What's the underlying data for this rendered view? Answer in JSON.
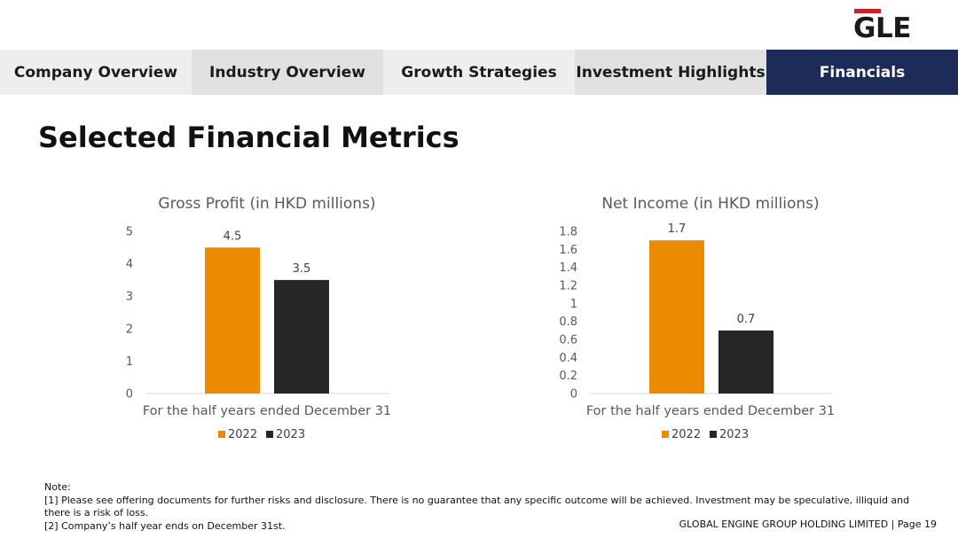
{
  "logo": {
    "text": "GLE",
    "bar_color": "#c8202a"
  },
  "tabs": [
    {
      "label": "Company Overview",
      "active": false
    },
    {
      "label": "Industry Overview",
      "active": false
    },
    {
      "label": "Growth Strategies",
      "active": false
    },
    {
      "label": "Investment Highlights",
      "active": false
    },
    {
      "label": "Financials",
      "active": true
    }
  ],
  "page_title": "Selected Financial Metrics",
  "colors": {
    "series_2022": "#ed8b00",
    "series_2023": "#262626",
    "nav_active": "#1c2b58",
    "axis": "#d9d9d9"
  },
  "chart_data": [
    {
      "type": "bar",
      "title": "Gross Profit (in HKD millions)",
      "xlabel": "For the half years ended December 31",
      "ylabel": "",
      "ylim": [
        0,
        5
      ],
      "yticks": [
        0,
        1,
        2,
        3,
        4,
        5
      ],
      "ytick_labels": [
        "0",
        "1",
        "2",
        "3",
        "4",
        "5"
      ],
      "grid": false,
      "legend": "bottom",
      "series": [
        {
          "name": "2022",
          "values": [
            4.5
          ],
          "label": "4.5",
          "color": "#ed8b00"
        },
        {
          "name": "2023",
          "values": [
            3.5
          ],
          "label": "3.5",
          "color": "#262626"
        }
      ]
    },
    {
      "type": "bar",
      "title": "Net Income (in HKD millions)",
      "xlabel": "For the half years ended December 31",
      "ylabel": "",
      "ylim": [
        0,
        1.8
      ],
      "yticks": [
        0,
        0.2,
        0.4,
        0.6,
        0.8,
        1,
        1.2,
        1.4,
        1.6,
        1.8
      ],
      "ytick_labels": [
        "0",
        "0.2",
        "0.4",
        "0.6",
        "0.8",
        "1",
        "1.2",
        "1.4",
        "1.6",
        "1.8"
      ],
      "grid": false,
      "legend": "bottom",
      "series": [
        {
          "name": "2022",
          "values": [
            1.7
          ],
          "label": "1.7",
          "color": "#ed8b00"
        },
        {
          "name": "2023",
          "values": [
            0.7
          ],
          "label": "0.7",
          "color": "#262626"
        }
      ]
    }
  ],
  "notes": {
    "heading": "Note:",
    "line1": "[1] Please see offering documents for further risks and disclosure. There is no guarantee that any specific outcome will be achieved. Investment may be speculative, illiquid and there is a risk of loss.",
    "line2": "[2] Company’s half year ends on December 31st."
  },
  "footer": "GLOBAL ENGINE GROUP HOLDING LIMITED | Page 19"
}
